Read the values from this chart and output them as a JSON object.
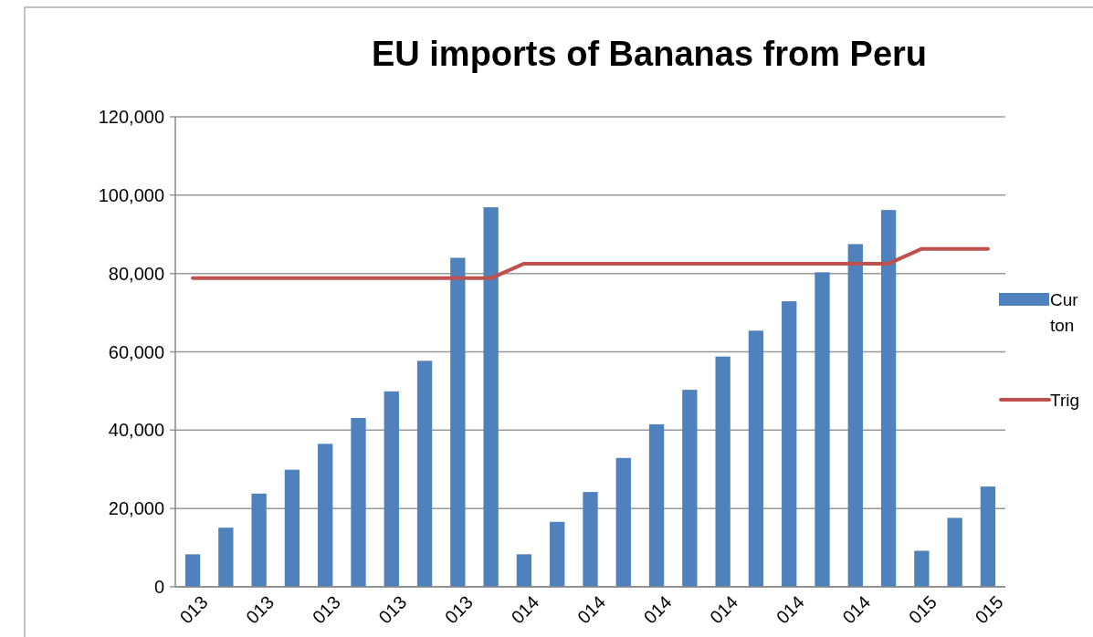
{
  "chart_data": {
    "type": "bar",
    "title": "EU imports of Bananas from Peru",
    "categories": [
      "013",
      null,
      "013",
      null,
      "013",
      null,
      "013",
      null,
      "013",
      null,
      "014",
      null,
      "014",
      null,
      "014",
      null,
      "014",
      null,
      "014",
      null,
      "014",
      null,
      "015",
      null,
      "015"
    ],
    "series": [
      {
        "name": "Cur ton",
        "color": "#4f81bd",
        "values": [
          8300,
          15100,
          23800,
          29900,
          36500,
          43100,
          49900,
          57700,
          84000,
          96900,
          8300,
          16600,
          24200,
          32900,
          41500,
          50300,
          58800,
          65400,
          72900,
          80300,
          87500,
          96200,
          9200,
          17600,
          25600
        ]
      },
      {
        "name": "Trig",
        "type": "line",
        "color": "#c0504d",
        "values": [
          78800,
          78800,
          78800,
          78800,
          78800,
          78800,
          78800,
          78800,
          78800,
          78800,
          82500,
          82500,
          82500,
          82500,
          82500,
          82500,
          82500,
          82500,
          82500,
          82500,
          82500,
          82500,
          86300,
          86300,
          86300
        ]
      }
    ],
    "ylim": [
      0,
      120000
    ],
    "yticks": [
      {
        "value": 0,
        "label": "0"
      },
      {
        "value": 20000,
        "label": "20,000"
      },
      {
        "value": 40000,
        "label": "40,000"
      },
      {
        "value": 60000,
        "label": "60,000"
      },
      {
        "value": 80000,
        "label": "80,000"
      },
      {
        "value": 100000,
        "label": "100,000"
      },
      {
        "value": 120000,
        "label": "120,000"
      }
    ],
    "grid": "y",
    "legend": "right"
  }
}
